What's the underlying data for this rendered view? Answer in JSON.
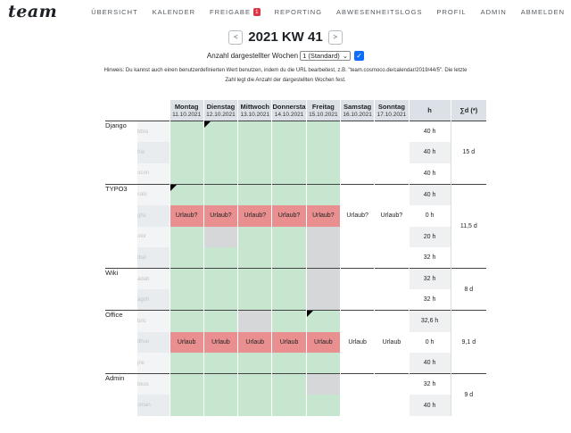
{
  "app": {
    "logo": "team"
  },
  "nav": [
    {
      "label": "ÜBERSICHT"
    },
    {
      "label": "KALENDER"
    },
    {
      "label": "FREIGABE",
      "badge": "1"
    },
    {
      "label": "REPORTING"
    },
    {
      "label": "ABWESENHEITSLOGS"
    },
    {
      "label": "PROFIL"
    },
    {
      "label": "ADMIN"
    },
    {
      "label": "ABMELDEN"
    }
  ],
  "week": {
    "prev_label": "<",
    "title": "2021 KW 41",
    "next_label": ">"
  },
  "weeks_selector": {
    "label": "Anzahl dargestellter Wochen",
    "value": "1 (Standard)",
    "checkbox_mark": "✓"
  },
  "hint": "Hinweis: Du kannst auch einen benutzerdefinierten Wert benutzen, indem du die URL bearbeitest, z.B. \"team.cosmoco.de/calendar/2019/44/5\". Die letzte Zahl legt die Anzahl der dargestellten Wochen fest.",
  "columns": {
    "days": [
      {
        "name": "Montag",
        "date": "11.10.2021"
      },
      {
        "name": "Dienstag",
        "date": "12.10.2021"
      },
      {
        "name": "Mittwoch",
        "date": "13.10.2021"
      },
      {
        "name": "Donnersta",
        "date": "14.10.2021"
      },
      {
        "name": "Freitag",
        "date": "15.10.2021"
      },
      {
        "name": "Samstag",
        "date": "16.10.2021"
      },
      {
        "name": "Sonntag",
        "date": "17.10.2021"
      }
    ],
    "hours": "h",
    "sum": "∑d (*)"
  },
  "colors": {
    "available": "#c7e6cf",
    "absent": "#ea8f8f",
    "blocked": "#d5d7d9",
    "header": "#dbe1e7"
  },
  "projects": [
    {
      "name": "Django",
      "sum": "15 d",
      "rows": [
        {
          "user": "bbra",
          "hours": "40 h",
          "cells": [
            [
              "g",
              ""
            ],
            [
              "g",
              "",
              1
            ],
            [
              "g",
              ""
            ],
            [
              "g",
              ""
            ],
            [
              "g",
              ""
            ],
            [
              "w",
              ""
            ],
            [
              "w",
              ""
            ]
          ]
        },
        {
          "user": "frie",
          "hours": "40 h",
          "cells": [
            [
              "g",
              ""
            ],
            [
              "g",
              ""
            ],
            [
              "g",
              ""
            ],
            [
              "g",
              ""
            ],
            [
              "g",
              ""
            ],
            [
              "w",
              ""
            ],
            [
              "w",
              ""
            ]
          ]
        },
        {
          "user": "ocon",
          "hours": "40 h",
          "cells": [
            [
              "g",
              ""
            ],
            [
              "g",
              ""
            ],
            [
              "g",
              ""
            ],
            [
              "g",
              ""
            ],
            [
              "g",
              ""
            ],
            [
              "w",
              ""
            ],
            [
              "w",
              ""
            ]
          ]
        }
      ]
    },
    {
      "name": "TYPO3",
      "sum": "11,5 d",
      "rows": [
        {
          "user": "cals",
          "hours": "40 h",
          "cells": [
            [
              "g",
              "",
              1
            ],
            [
              "g",
              ""
            ],
            [
              "g",
              ""
            ],
            [
              "g",
              ""
            ],
            [
              "g",
              ""
            ],
            [
              "w",
              ""
            ],
            [
              "w",
              ""
            ]
          ]
        },
        {
          "user": "ghs",
          "hours": "0 h",
          "cells": [
            [
              "r",
              "Urlaub?"
            ],
            [
              "r",
              "Urlaub?"
            ],
            [
              "r",
              "Urlaub?"
            ],
            [
              "r",
              "Urlaub?"
            ],
            [
              "r",
              "Urlaub?"
            ],
            [
              "w",
              "Urlaub?"
            ],
            [
              "w",
              "Urlaub?"
            ]
          ]
        },
        {
          "user": "olor",
          "hours": "20 h",
          "cells": [
            [
              "g",
              ""
            ],
            [
              "x",
              ""
            ],
            [
              "g",
              ""
            ],
            [
              "g",
              ""
            ],
            [
              "x",
              ""
            ],
            [
              "w",
              ""
            ],
            [
              "w",
              ""
            ]
          ]
        },
        {
          "user": "tbal",
          "hours": "32 h",
          "cells": [
            [
              "g",
              ""
            ],
            [
              "g",
              ""
            ],
            [
              "g",
              ""
            ],
            [
              "g",
              ""
            ],
            [
              "x",
              ""
            ],
            [
              "w",
              ""
            ],
            [
              "w",
              ""
            ]
          ]
        }
      ]
    },
    {
      "name": "Wiki",
      "sum": "8 d",
      "rows": [
        {
          "user": "adab",
          "hours": "32 h",
          "cells": [
            [
              "g",
              ""
            ],
            [
              "g",
              ""
            ],
            [
              "g",
              ""
            ],
            [
              "g",
              ""
            ],
            [
              "x",
              ""
            ],
            [
              "w",
              ""
            ],
            [
              "w",
              ""
            ]
          ]
        },
        {
          "user": "agoh",
          "hours": "32 h",
          "cells": [
            [
              "g",
              ""
            ],
            [
              "g",
              ""
            ],
            [
              "g",
              ""
            ],
            [
              "g",
              ""
            ],
            [
              "x",
              ""
            ],
            [
              "w",
              ""
            ],
            [
              "w",
              ""
            ]
          ]
        }
      ]
    },
    {
      "name": "Office",
      "sum": "9,1 d",
      "rows": [
        {
          "user": "bric",
          "hours": "32,6 h",
          "cells": [
            [
              "g",
              ""
            ],
            [
              "g",
              ""
            ],
            [
              "x",
              ""
            ],
            [
              "g",
              ""
            ],
            [
              "g",
              "",
              1
            ],
            [
              "w",
              ""
            ],
            [
              "w",
              ""
            ]
          ]
        },
        {
          "user": "dhue",
          "hours": "0 h",
          "cells": [
            [
              "r",
              "Urlaub"
            ],
            [
              "r",
              "Urlaub"
            ],
            [
              "r",
              "Urlaub"
            ],
            [
              "r",
              "Urlaub"
            ],
            [
              "r",
              "Urlaub"
            ],
            [
              "w",
              "Urlaub"
            ],
            [
              "w",
              "Urlaub"
            ]
          ]
        },
        {
          "user": "jrie",
          "hours": "40 h",
          "cells": [
            [
              "g",
              ""
            ],
            [
              "g",
              ""
            ],
            [
              "g",
              ""
            ],
            [
              "g",
              ""
            ],
            [
              "g",
              ""
            ],
            [
              "w",
              ""
            ],
            [
              "w",
              ""
            ]
          ]
        }
      ]
    },
    {
      "name": "Admin",
      "sum": "9 d",
      "rows": [
        {
          "user": "bkos",
          "hours": "32 h",
          "cells": [
            [
              "g",
              ""
            ],
            [
              "g",
              ""
            ],
            [
              "g",
              ""
            ],
            [
              "g",
              ""
            ],
            [
              "x",
              ""
            ],
            [
              "w",
              ""
            ],
            [
              "w",
              ""
            ]
          ]
        },
        {
          "user": "sman",
          "hours": "40 h",
          "cells": [
            [
              "g",
              ""
            ],
            [
              "g",
              ""
            ],
            [
              "g",
              ""
            ],
            [
              "g",
              ""
            ],
            [
              "g",
              ""
            ],
            [
              "w",
              ""
            ],
            [
              "w",
              ""
            ]
          ]
        }
      ]
    }
  ]
}
